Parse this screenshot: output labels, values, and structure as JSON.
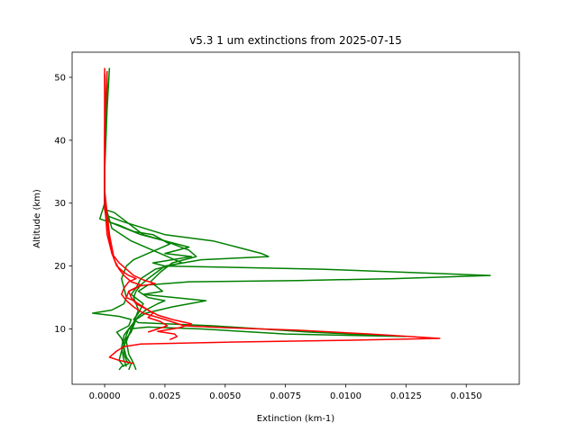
{
  "chart_data": {
    "type": "line",
    "title": "v5.3 1 um extinctions from 2025-07-15",
    "xlabel": "Extinction (km-1)",
    "ylabel": "Altitude (km)",
    "xlim": [
      -0.00135,
      0.0172
    ],
    "ylim": [
      1.2,
      54.0
    ],
    "xticks": [
      0.0,
      0.0025,
      0.005,
      0.0075,
      0.01,
      0.0125,
      0.015
    ],
    "xtick_labels": [
      "0.0000",
      "0.0025",
      "0.0050",
      "0.0075",
      "0.0100",
      "0.0125",
      "0.0150"
    ],
    "yticks": [
      10,
      20,
      30,
      40,
      50
    ],
    "ytick_labels": [
      "10",
      "20",
      "30",
      "40",
      "50"
    ],
    "grid": false,
    "colors": {
      "green": "#008000",
      "red": "#ff0000"
    },
    "series": [
      {
        "color": "green",
        "points": [
          [
            0.0002,
            51.5
          ],
          [
            0.0001,
            45
          ],
          [
            0.0,
            35
          ],
          [
            0.0,
            30
          ],
          [
            0.0001,
            28
          ],
          [
            0.0008,
            27
          ],
          [
            0.0025,
            25
          ],
          [
            0.0045,
            24
          ],
          [
            0.0055,
            23
          ],
          [
            0.0065,
            22
          ],
          [
            0.0068,
            21.5
          ],
          [
            0.004,
            21
          ],
          [
            0.0025,
            20
          ],
          [
            0.0018,
            18
          ],
          [
            0.0015,
            17
          ],
          [
            0.0013,
            16
          ],
          [
            0.0012,
            15
          ],
          [
            0.0013,
            14
          ],
          [
            0.0014,
            13
          ],
          [
            0.0013,
            12
          ],
          [
            0.0012,
            11
          ],
          [
            0.001,
            10
          ],
          [
            0.0009,
            9
          ],
          [
            0.0008,
            8
          ],
          [
            0.0008,
            6
          ],
          [
            0.0009,
            5
          ],
          [
            0.001,
            4.5
          ],
          [
            0.0007,
            4
          ],
          [
            0.0006,
            3.5
          ]
        ]
      },
      {
        "color": "green",
        "points": [
          [
            0.0001,
            51
          ],
          [
            0.0,
            40
          ],
          [
            0.0,
            30
          ],
          [
            0.0002,
            27
          ],
          [
            0.0015,
            25
          ],
          [
            0.0035,
            23
          ],
          [
            0.0025,
            22
          ],
          [
            0.0036,
            21.5
          ],
          [
            0.002,
            20.5
          ],
          [
            0.0025,
            20
          ],
          [
            0.009,
            19.5
          ],
          [
            0.016,
            18.5
          ],
          [
            0.012,
            18
          ],
          [
            0.008,
            17.7
          ],
          [
            0.0035,
            17.5
          ],
          [
            0.0018,
            17
          ],
          [
            0.0014,
            16
          ],
          [
            0.0018,
            15
          ],
          [
            0.0025,
            14.5
          ],
          [
            0.0022,
            14
          ],
          [
            0.0017,
            13
          ],
          [
            0.0014,
            12
          ],
          [
            0.0012,
            11
          ],
          [
            0.0011,
            10
          ],
          [
            0.001,
            9
          ],
          [
            0.0009,
            8
          ],
          [
            0.001,
            6
          ],
          [
            0.0012,
            4.5
          ],
          [
            0.0013,
            3.5
          ]
        ]
      },
      {
        "color": "green",
        "points": [
          [
            0.0001,
            50
          ],
          [
            0.0,
            40
          ],
          [
            0.0,
            30
          ],
          [
            -0.0002,
            27.5
          ],
          [
            0.0006,
            26.5
          ],
          [
            0.0012,
            25.5
          ],
          [
            0.002,
            25
          ],
          [
            0.0027,
            23.5
          ],
          [
            0.0018,
            22
          ],
          [
            0.0012,
            21
          ],
          [
            0.0009,
            20
          ],
          [
            0.0007,
            18
          ],
          [
            0.0008,
            16.5
          ],
          [
            0.0009,
            15
          ],
          [
            0.0008,
            14
          ],
          [
            0.0003,
            13
          ],
          [
            -0.0005,
            12.5
          ],
          [
            0.0006,
            12
          ],
          [
            0.0011,
            11.5
          ],
          [
            0.001,
            10.5
          ],
          [
            0.0005,
            9.5
          ],
          [
            0.0007,
            8.5
          ],
          [
            0.0008,
            7.5
          ],
          [
            0.0007,
            6.5
          ],
          [
            0.0006,
            5
          ],
          [
            0.0008,
            4
          ]
        ]
      },
      {
        "color": "green",
        "points": [
          [
            0.0001,
            50
          ],
          [
            0.0,
            38
          ],
          [
            0.0,
            29
          ],
          [
            0.0004,
            28.5
          ],
          [
            0.0016,
            25
          ],
          [
            0.0025,
            24
          ],
          [
            0.0035,
            22.5
          ],
          [
            0.0038,
            21.5
          ],
          [
            0.0028,
            20.5
          ],
          [
            0.0023,
            19
          ],
          [
            0.0019,
            17.5
          ],
          [
            0.0024,
            16
          ],
          [
            0.0016,
            15.5
          ],
          [
            0.0042,
            14.5
          ],
          [
            0.0028,
            13.5
          ],
          [
            0.0017,
            12.5
          ],
          [
            0.0013,
            11.5
          ],
          [
            0.0012,
            10.5
          ],
          [
            0.0011,
            9.5
          ],
          [
            0.0009,
            8.5
          ],
          [
            0.0008,
            7
          ],
          [
            0.0009,
            5.5
          ],
          [
            0.0011,
            4.5
          ],
          [
            0.001,
            3.5
          ]
        ]
      },
      {
        "color": "green",
        "points": [
          [
            0.0001,
            49
          ],
          [
            0.0,
            36
          ],
          [
            0.0,
            30
          ],
          [
            0.0003,
            26
          ],
          [
            0.0011,
            24
          ],
          [
            0.0026,
            21.5
          ],
          [
            0.0032,
            20.5
          ],
          [
            0.0021,
            19.5
          ],
          [
            0.0015,
            18
          ],
          [
            0.0013,
            16.5
          ],
          [
            0.0011,
            15.5
          ],
          [
            0.0016,
            14
          ],
          [
            0.0014,
            12.5
          ],
          [
            0.0012,
            11.5
          ],
          [
            0.0014,
            11
          ],
          [
            0.0045,
            10.5
          ],
          [
            0.0085,
            9.5
          ],
          [
            0.0125,
            8.8
          ],
          [
            0.0075,
            9.2
          ],
          [
            0.004,
            10
          ],
          [
            0.0018,
            10.3
          ],
          [
            0.001,
            10
          ],
          [
            0.0008,
            9
          ],
          [
            0.0007,
            7
          ],
          [
            0.0008,
            5
          ],
          [
            0.0009,
            4
          ]
        ]
      },
      {
        "color": "red",
        "points": [
          [
            0.0,
            51.5
          ],
          [
            0.0,
            45
          ],
          [
            0.0,
            35
          ],
          [
            0.0,
            29
          ],
          [
            0.0001,
            27
          ],
          [
            0.0002,
            24
          ],
          [
            0.0003,
            22
          ],
          [
            0.0005,
            20
          ],
          [
            0.0008,
            19
          ],
          [
            0.001,
            18.5
          ],
          [
            0.0013,
            18
          ],
          [
            0.001,
            17.5
          ],
          [
            0.0008,
            16.5
          ],
          [
            0.0007,
            15.5
          ],
          [
            0.0009,
            14.5
          ],
          [
            0.0012,
            13.5
          ],
          [
            0.0016,
            12.5
          ],
          [
            0.0025,
            11.5
          ],
          [
            0.0033,
            10.5
          ],
          [
            0.005,
            10.2
          ],
          [
            0.008,
            9.8
          ],
          [
            0.011,
            9.2
          ],
          [
            0.0139,
            8.5
          ],
          [
            0.01,
            8.2
          ],
          [
            0.005,
            7.9
          ],
          [
            0.0015,
            7.6
          ],
          [
            0.0008,
            7.2
          ],
          [
            0.0005,
            6.5
          ],
          [
            0.0002,
            5.5
          ],
          [
            0.0006,
            5.0
          ],
          [
            0.0012,
            4.5
          ]
        ]
      },
      {
        "color": "red",
        "points": [
          [
            0.0001,
            51
          ],
          [
            0.0,
            42
          ],
          [
            0.0,
            32
          ],
          [
            0.0002,
            25
          ],
          [
            0.0004,
            21
          ],
          [
            0.0006,
            19.5
          ],
          [
            0.0008,
            18.5
          ],
          [
            0.0011,
            17.5
          ],
          [
            0.0015,
            17
          ],
          [
            0.0013,
            16.5
          ],
          [
            0.001,
            16
          ],
          [
            0.0011,
            15
          ],
          [
            0.0013,
            14
          ],
          [
            0.0018,
            13
          ],
          [
            0.0022,
            12.2
          ],
          [
            0.0028,
            11.5
          ],
          [
            0.0036,
            10.8
          ],
          [
            0.0031,
            10.2
          ],
          [
            0.0022,
            9.6
          ],
          [
            0.0029,
            9.2
          ],
          [
            0.003,
            8.8
          ],
          [
            0.0027,
            8.3
          ]
        ]
      },
      {
        "color": "red",
        "points": [
          [
            0.0,
            50.5
          ],
          [
            0.0,
            40
          ],
          [
            0.0,
            30
          ],
          [
            0.0001,
            25
          ],
          [
            0.0003,
            22
          ],
          [
            0.0006,
            20.5
          ],
          [
            0.0009,
            19.5
          ],
          [
            0.0012,
            18.5
          ],
          [
            0.0016,
            17.8
          ],
          [
            0.0021,
            17.2
          ],
          [
            0.0014,
            16.8
          ],
          [
            0.001,
            16
          ],
          [
            0.0009,
            15
          ],
          [
            0.0012,
            14.5
          ],
          [
            0.0016,
            13.5
          ],
          [
            0.002,
            12.5
          ],
          [
            0.0018,
            11.8
          ],
          [
            0.0023,
            11.2
          ],
          [
            0.0026,
            10.5
          ],
          [
            0.0022,
            10.0
          ],
          [
            0.0018,
            9.5
          ]
        ]
      }
    ]
  }
}
